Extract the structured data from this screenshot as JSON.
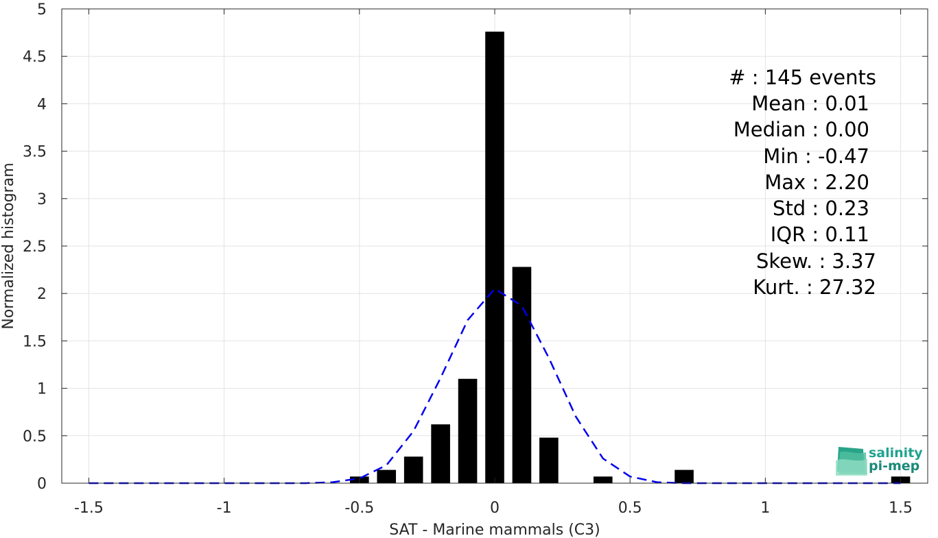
{
  "chart_data": {
    "type": "bar",
    "xlabel": "SAT - Marine mammals (C3)",
    "ylabel": "Normalized histogram",
    "xlim": [
      -1.6,
      1.6
    ],
    "ylim": [
      0,
      5
    ],
    "xticks": [
      -1.5,
      -1,
      -0.5,
      0,
      0.5,
      1,
      1.5
    ],
    "xtick_labels": [
      "-1.5",
      "-1",
      "-0.5",
      "0",
      "0.5",
      "1",
      "1.5"
    ],
    "yticks": [
      0,
      0.5,
      1,
      1.5,
      2,
      2.5,
      3,
      3.5,
      4,
      4.5,
      5
    ],
    "ytick_labels": [
      "0",
      "0.5",
      "1",
      "1.5",
      "2",
      "2.5",
      "3",
      "3.5",
      "4",
      "4.5",
      "5"
    ],
    "grid": true,
    "bar_width": 0.07,
    "bars": {
      "x": [
        -0.5,
        -0.4,
        -0.3,
        -0.2,
        -0.1,
        0.0,
        0.1,
        0.2,
        0.4,
        0.7,
        1.5
      ],
      "values": [
        0.07,
        0.14,
        0.28,
        0.62,
        1.1,
        4.76,
        2.28,
        0.48,
        0.07,
        0.14,
        0.07
      ],
      "color": "#000000"
    },
    "fit_curve": {
      "style": "dashed",
      "color": "#0000ee",
      "x": [
        -1.5,
        -1.4,
        -1.3,
        -1.2,
        -1.1,
        -1.0,
        -0.9,
        -0.8,
        -0.7,
        -0.6,
        -0.5,
        -0.4,
        -0.3,
        -0.2,
        -0.1,
        0.0,
        0.1,
        0.2,
        0.3,
        0.4,
        0.5,
        0.6,
        0.7,
        0.8,
        0.9,
        1.0,
        1.1,
        1.2,
        1.3,
        1.4,
        1.5
      ],
      "y": [
        0,
        0,
        0,
        0,
        0,
        0,
        0,
        0,
        0,
        0.01,
        0.05,
        0.19,
        0.55,
        1.11,
        1.72,
        2.05,
        1.87,
        1.32,
        0.7,
        0.26,
        0.07,
        0.01,
        0,
        0,
        0,
        0,
        0,
        0,
        0,
        0,
        0
      ]
    },
    "annotations": [
      "#  : 145 events",
      "Mean : 0.01",
      "Median : 0.00",
      "Min : -0.47",
      "Max : 2.20",
      "Std : 0.23",
      "IQR : 0.11",
      "Skew. : 3.37",
      "Kurt. : 27.32"
    ]
  },
  "logo": {
    "line1": "salinity",
    "line2": "pi-mep",
    "color": "#1fa38f"
  }
}
